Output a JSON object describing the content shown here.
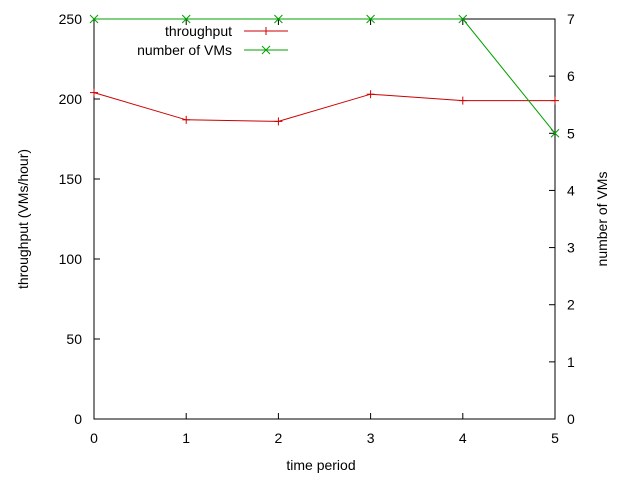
{
  "chart_data": {
    "type": "line",
    "x": [
      0,
      1,
      2,
      3,
      4,
      5
    ],
    "xlim": [
      0,
      5
    ],
    "ylim": [
      0,
      250
    ],
    "y2lim": [
      0,
      7
    ],
    "xticks": [
      "0",
      "1",
      "2",
      "3",
      "4",
      "5"
    ],
    "yticks": [
      "0",
      "50",
      "100",
      "150",
      "200",
      "250"
    ],
    "y2ticks": [
      "0",
      "1",
      "2",
      "3",
      "4",
      "5",
      "6",
      "7"
    ],
    "xlabel": "time period",
    "ylabel": "throughput (VMs/hour)",
    "y2label": "number of VMs",
    "grid": false,
    "legend_position": "top",
    "series": [
      {
        "name": "throughput",
        "axis": "left",
        "marker": "+",
        "color": "#cc0000",
        "values": [
          204,
          187,
          186,
          203,
          199,
          199
        ]
      },
      {
        "name": "number of VMs",
        "axis": "right",
        "marker": "x",
        "color": "#00a000",
        "values": [
          7,
          7,
          7,
          7,
          7,
          5
        ]
      }
    ]
  }
}
